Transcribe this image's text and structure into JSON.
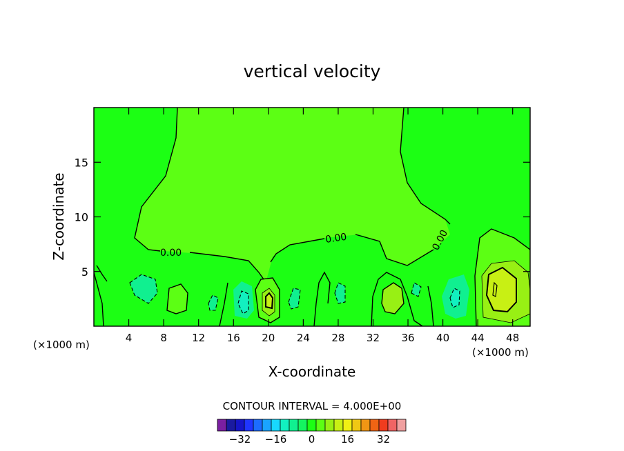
{
  "chart_data": {
    "type": "heatmap",
    "title": "vertical velocity",
    "xlabel": "X-coordinate",
    "ylabel": "Z-coordinate",
    "x_unit_left": "(×1000 m)",
    "x_unit_right": "(×1000 m)",
    "xlim": [
      0,
      50
    ],
    "ylim": [
      0,
      20
    ],
    "x_ticks": [
      4,
      8,
      12,
      16,
      20,
      24,
      28,
      32,
      36,
      40,
      44,
      48
    ],
    "x_tick_labels": [
      "4",
      "8",
      "12",
      "16",
      "20",
      "24",
      "28",
      "32",
      "36",
      "40",
      "44",
      "48"
    ],
    "y_ticks": [
      5,
      10,
      15
    ],
    "y_tick_labels": [
      "5",
      "10",
      "15"
    ],
    "contour_interval_label": "CONTOUR INTERVAL = 4.000E+00",
    "contour_labels": [
      "0.00",
      "0.00",
      "0.00"
    ],
    "colorbar": {
      "colors": [
        "#7b1fa2",
        "#1a1aa0",
        "#1515c8",
        "#1f35ff",
        "#1c6cff",
        "#1aa4ff",
        "#18d8ff",
        "#12f0c0",
        "#10f090",
        "#14f560",
        "#1cff14",
        "#5cff14",
        "#98f014",
        "#c8f014",
        "#f0f014",
        "#f0c814",
        "#f09614",
        "#f06414",
        "#f03c1e",
        "#f06464",
        "#f0a0a0"
      ],
      "tick_values": [
        -32,
        -16,
        0,
        16,
        32
      ],
      "tick_labels": [
        "−32",
        "−16",
        "0",
        "16",
        "32"
      ]
    },
    "fields": {
      "background": "#1cff14",
      "positive_weak": "#5cff14",
      "positive_mid": "#98f014",
      "positive_strong": "#c8f014",
      "negative_weak": "#10f090",
      "negative_mid": "#12f0c0"
    }
  }
}
